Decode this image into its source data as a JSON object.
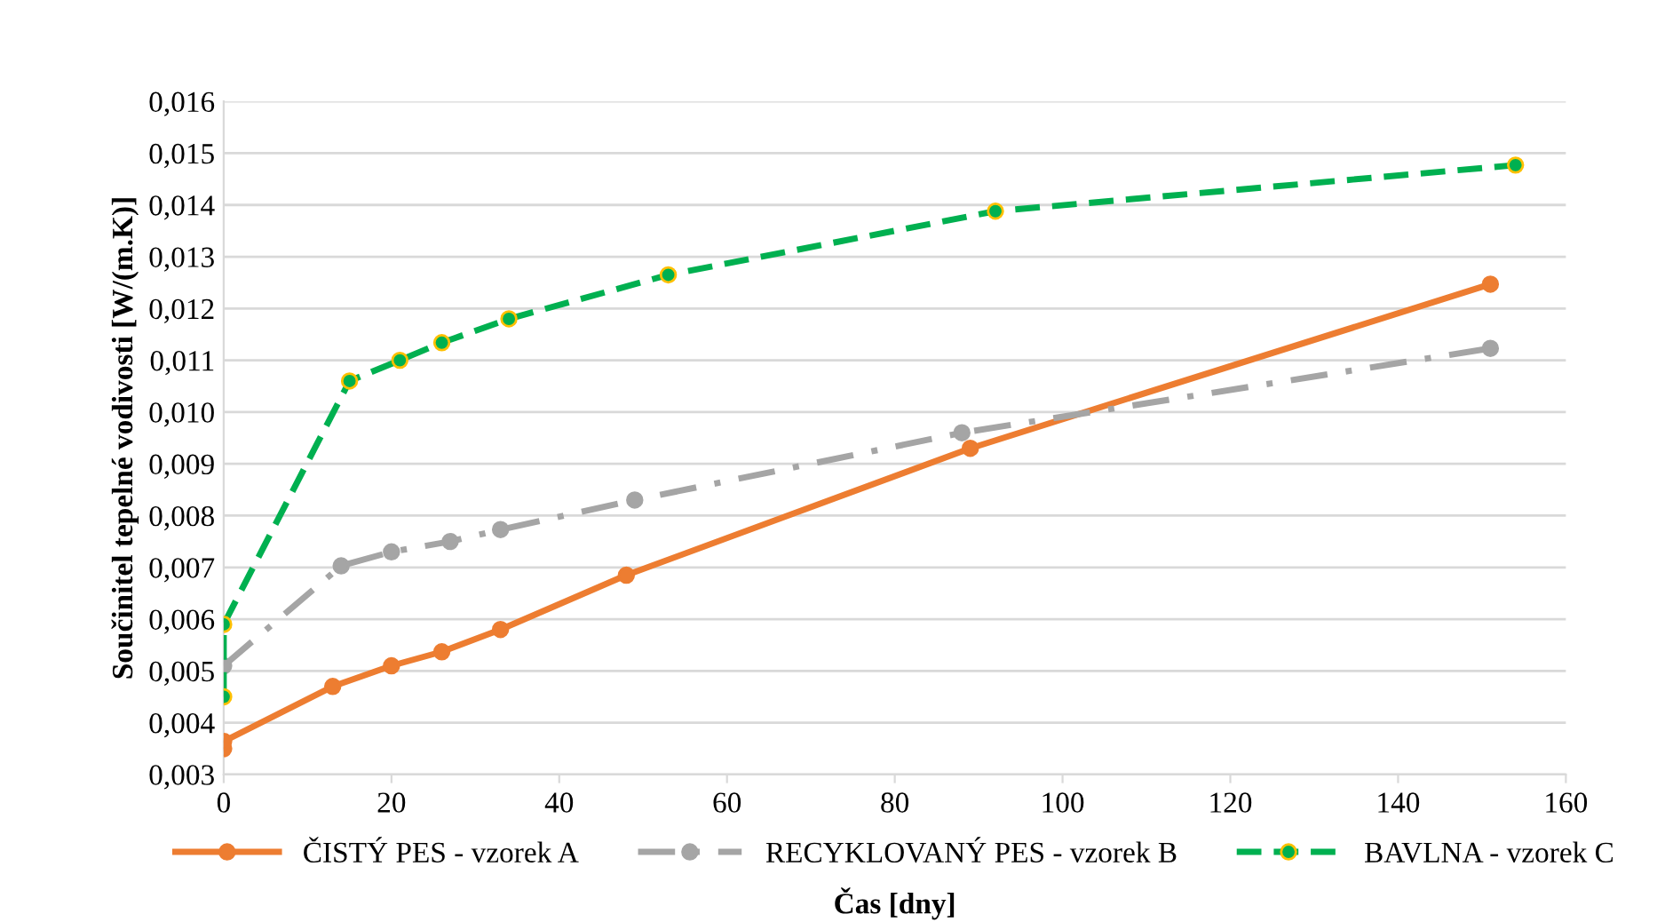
{
  "chart_data": {
    "type": "line",
    "xlabel": "Čas [dny]",
    "ylabel": "Součinitel tepelné vodivosti [W/(m.K)]",
    "xlim": [
      0,
      160
    ],
    "xticks": [
      0,
      20,
      40,
      60,
      80,
      100,
      120,
      140,
      160
    ],
    "ylim": [
      0.003,
      0.016
    ],
    "yticks": [
      {
        "value": 0.003,
        "label": "0,003"
      },
      {
        "value": 0.004,
        "label": "0,004"
      },
      {
        "value": 0.005,
        "label": "0,005"
      },
      {
        "value": 0.006,
        "label": "0,006"
      },
      {
        "value": 0.007,
        "label": "0,007"
      },
      {
        "value": 0.008,
        "label": "0,008"
      },
      {
        "value": 0.009,
        "label": "0,009"
      },
      {
        "value": 0.01,
        "label": "0,010"
      },
      {
        "value": 0.011,
        "label": "0,011"
      },
      {
        "value": 0.012,
        "label": "0,012"
      },
      {
        "value": 0.013,
        "label": "0,013"
      },
      {
        "value": 0.014,
        "label": "0,014"
      },
      {
        "value": 0.015,
        "label": "0,015"
      },
      {
        "value": 0.016,
        "label": "0,016"
      }
    ],
    "grid": "y",
    "legend": "bottom",
    "marker": "circle",
    "series": [
      {
        "name": "ČISTÝ PES - vzorek A",
        "color": "#ed7d31",
        "line_style": "solid",
        "x": [
          0,
          0,
          13,
          20,
          26,
          33,
          48,
          89,
          151
        ],
        "values": [
          0.0035,
          0.00364,
          0.0047,
          0.0051,
          0.00537,
          0.0058,
          0.00685,
          0.0093,
          0.01247
        ]
      },
      {
        "name": "RECYKLOVANÝ PES - vzorek B",
        "color": "#a5a5a5",
        "line_style": "dashdot",
        "x": [
          0,
          14,
          20,
          27,
          33,
          49,
          88,
          151
        ],
        "values": [
          0.0051,
          0.00703,
          0.0073,
          0.0075,
          0.00773,
          0.0083,
          0.0096,
          0.01123
        ]
      },
      {
        "name": "BAVLNA - vzorek C",
        "color": "#00b050",
        "line_style": "dashed",
        "x": [
          0,
          0,
          15,
          21,
          26,
          34,
          53,
          92,
          154
        ],
        "values": [
          0.0045,
          0.0059,
          0.0106,
          0.011,
          0.01134,
          0.0118,
          0.01265,
          0.01388,
          0.01477
        ]
      }
    ]
  }
}
